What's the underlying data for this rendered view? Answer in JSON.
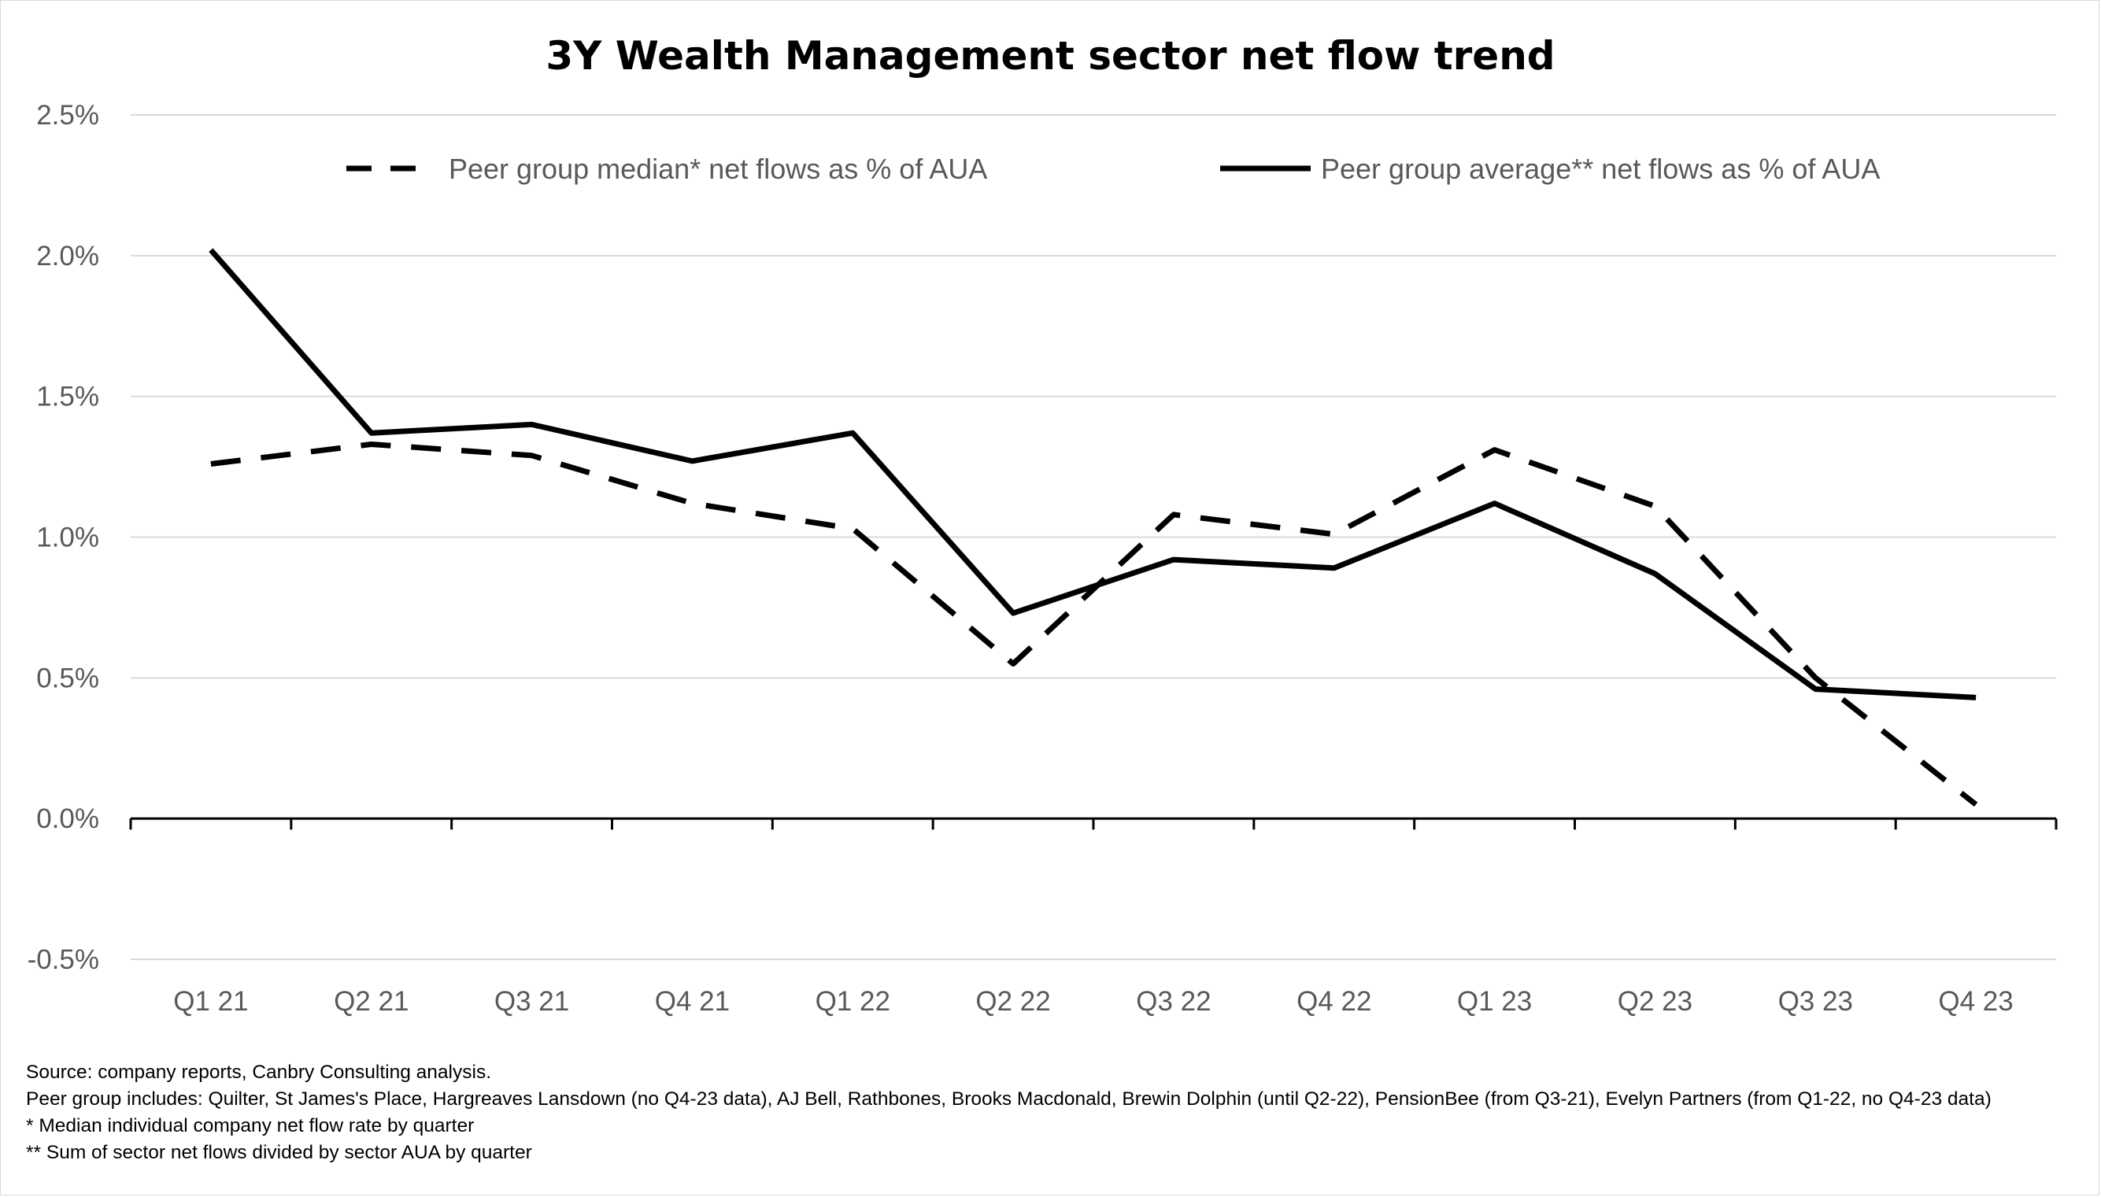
{
  "chart_data": {
    "type": "line",
    "title": "3Y Wealth Management sector net flow trend",
    "categories": [
      "Q1 21",
      "Q2 21",
      "Q3 21",
      "Q4 21",
      "Q1 22",
      "Q2 22",
      "Q3 22",
      "Q4 22",
      "Q1 23",
      "Q2 23",
      "Q3 23",
      "Q4 23"
    ],
    "yticks": [
      "2.5%",
      "2.0%",
      "1.5%",
      "1.0%",
      "0.5%",
      "0.0%",
      "-0.5%"
    ],
    "ylim": [
      -0.5,
      2.5
    ],
    "y_unit": "%",
    "grid": true,
    "legend_position": "top",
    "series": [
      {
        "name": "Peer group median* net flows as % of AUA",
        "style": "dashed",
        "values": [
          1.26,
          1.33,
          1.29,
          1.12,
          1.03,
          0.55,
          1.08,
          1.01,
          1.31,
          1.11,
          0.5,
          0.05
        ]
      },
      {
        "name": "Peer group average** net flows as % of AUA",
        "style": "solid",
        "values": [
          2.02,
          1.37,
          1.4,
          1.27,
          1.37,
          0.73,
          0.92,
          0.89,
          1.12,
          0.87,
          0.46,
          0.43
        ]
      }
    ]
  },
  "colors": {
    "lines": "#000000",
    "grid": "#d9d9d9",
    "tick_text": "#595959",
    "axis": "#000000"
  },
  "notes": [
    "Source: company reports, Canbry Consulting analysis.",
    "Peer group includes: Quilter, St James's Place, Hargreaves Lansdown (no Q4-23 data), AJ Bell, Rathbones, Brooks Macdonald, Brewin Dolphin (until Q2-22), PensionBee (from Q3-21), Evelyn Partners (from Q1-22, no Q4-23 data)",
    "* Median individual company net flow rate by quarter",
    "** Sum of sector net flows divided by sector AUA by quarter"
  ]
}
